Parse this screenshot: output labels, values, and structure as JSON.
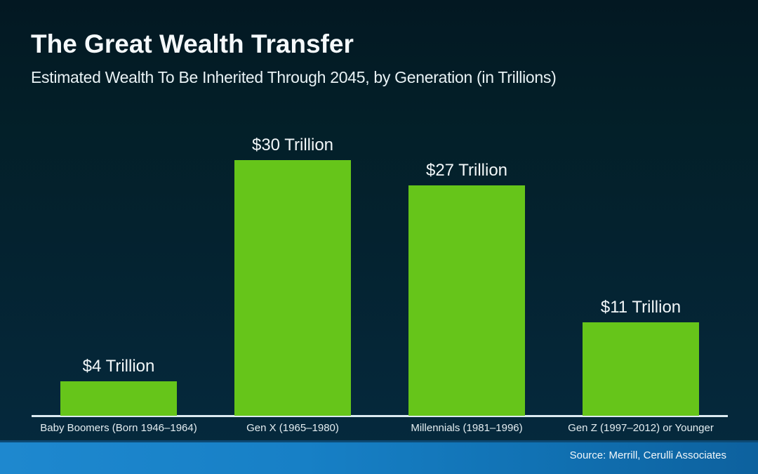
{
  "header": {
    "title": "The Great Wealth Transfer",
    "subtitle": "Estimated Wealth To Be Inherited Through 2045, by Generation (in Trillions)"
  },
  "footer": {
    "source": "Source: Merrill, Cerulli Associates"
  },
  "colors": {
    "bar": "#66c51a",
    "background_top": "#031822",
    "background_bottom": "#052a3f",
    "axis_line": "#dcebf1",
    "footer_band_left": "#1e88cf",
    "footer_band_right": "#0d619e",
    "text": "#f2f7f9"
  },
  "chart_data": {
    "type": "bar",
    "title": "The Great Wealth Transfer",
    "subtitle": "Estimated Wealth To Be Inherited Through 2045, by Generation (in Trillions)",
    "categories": [
      "Baby Boomers (Born 1946–1964)",
      "Gen X (1965–1980)",
      "Millennials (1981–1996)",
      "Gen Z (1997–2012) or Younger"
    ],
    "values": [
      4,
      30,
      27,
      11
    ],
    "value_labels": [
      "$4 Trillion",
      "$30 Trillion",
      "$27 Trillion",
      "$11 Trillion"
    ],
    "unit": "Trillions USD",
    "xlabel": "",
    "ylabel": "",
    "ylim": [
      0,
      30
    ],
    "grid": false,
    "legend": false,
    "bar_color": "#66c51a",
    "background": "dark navy gradient",
    "value_label_position": "above bars",
    "source": "Source: Merrill, Cerulli Associates"
  }
}
